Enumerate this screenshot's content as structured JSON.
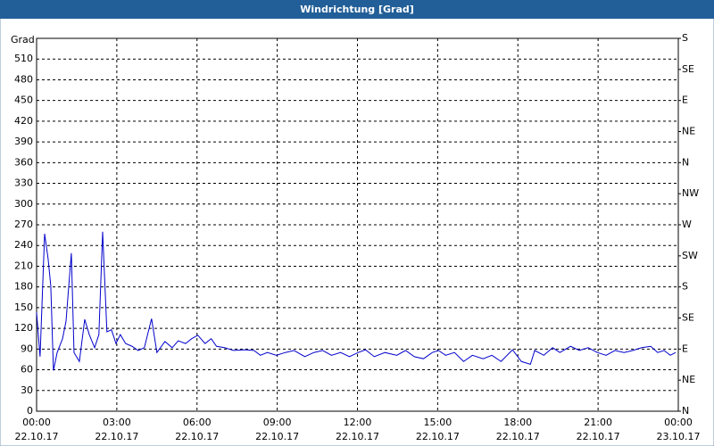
{
  "chart_data": {
    "type": "line",
    "title": "Windrichtung [Grad]",
    "y_label": "Grad",
    "x": [
      0,
      0.13,
      0.3,
      0.43,
      0.53,
      0.63,
      0.77,
      0.97,
      1.1,
      1.3,
      1.4,
      1.6,
      1.8,
      1.97,
      2.17,
      2.33,
      2.47,
      2.63,
      2.8,
      2.97,
      3.13,
      3.33,
      3.57,
      3.8,
      4.03,
      4.3,
      4.5,
      4.8,
      5.07,
      5.3,
      5.57,
      5.8,
      6.03,
      6.3,
      6.53,
      6.73,
      7.03,
      7.37,
      7.8,
      8.13,
      8.37,
      8.63,
      8.97,
      9.3,
      9.63,
      10.03,
      10.37,
      10.7,
      11.03,
      11.37,
      11.7,
      12.03,
      12.3,
      12.63,
      13.03,
      13.47,
      13.8,
      14.13,
      14.47,
      14.8,
      15.03,
      15.3,
      15.63,
      15.97,
      16.3,
      16.7,
      17.03,
      17.37,
      17.8,
      18.13,
      18.47,
      18.63,
      18.97,
      19.3,
      19.57,
      19.97,
      20.3,
      20.63,
      20.97,
      21.3,
      21.63,
      21.97,
      22.3,
      22.63,
      22.97,
      23.23,
      23.47,
      23.7,
      23.9
    ],
    "series": [
      {
        "color": "#0000cc",
        "values": [
          143,
          79,
          257,
          221,
          182,
          59,
          85,
          105,
          130,
          229,
          85,
          72,
          133,
          111,
          92,
          111,
          260,
          115,
          118,
          98,
          111,
          98,
          94,
          88,
          92,
          134,
          85,
          101,
          92,
          102,
          98,
          105,
          110,
          98,
          105,
          94,
          92,
          88,
          89,
          88,
          81,
          85,
          81,
          85,
          88,
          79,
          85,
          88,
          81,
          85,
          79,
          85,
          89,
          79,
          85,
          81,
          88,
          79,
          76,
          85,
          88,
          81,
          85,
          72,
          81,
          76,
          81,
          72,
          89,
          72,
          68,
          88,
          81,
          92,
          85,
          94,
          88,
          92,
          85,
          81,
          88,
          85,
          88,
          92,
          94,
          85,
          88,
          81,
          85
        ]
      }
    ],
    "xlim": [
      0,
      24
    ],
    "xticks": [
      {
        "value": 0,
        "label": "00:00"
      },
      {
        "value": 3,
        "label": "03:00"
      },
      {
        "value": 6,
        "label": "06:00"
      },
      {
        "value": 9,
        "label": "09:00"
      },
      {
        "value": 12,
        "label": "12:00"
      },
      {
        "value": 15,
        "label": "15:00"
      },
      {
        "value": 18,
        "label": "18:00"
      },
      {
        "value": 21,
        "label": "21:00"
      },
      {
        "value": 24,
        "label": "00:00"
      }
    ],
    "xtick_dates": [
      "22.10.17",
      "22.10.17",
      "22.10.17",
      "22.10.17",
      "22.10.17",
      "22.10.17",
      "22.10.17",
      "22.10.17",
      "23.10.17"
    ],
    "ylim": [
      0,
      540
    ],
    "yticks": [
      0,
      30,
      60,
      90,
      120,
      150,
      180,
      210,
      240,
      270,
      300,
      330,
      360,
      390,
      420,
      450,
      480,
      510
    ],
    "y2lim": [
      0,
      540
    ],
    "y2ticks": [
      {
        "value": 0,
        "label": "N"
      },
      {
        "value": 45,
        "label": "NE"
      },
      {
        "value": 90,
        "label": "E"
      },
      {
        "value": 135,
        "label": "SE"
      },
      {
        "value": 180,
        "label": "S"
      },
      {
        "value": 225,
        "label": "SW"
      },
      {
        "value": 270,
        "label": "W"
      },
      {
        "value": 315,
        "label": "NW"
      },
      {
        "value": 360,
        "label": "N"
      },
      {
        "value": 405,
        "label": "NE"
      },
      {
        "value": 450,
        "label": "E"
      },
      {
        "value": 495,
        "label": "SE"
      },
      {
        "value": 540,
        "label": "S"
      }
    ],
    "grid": true
  }
}
